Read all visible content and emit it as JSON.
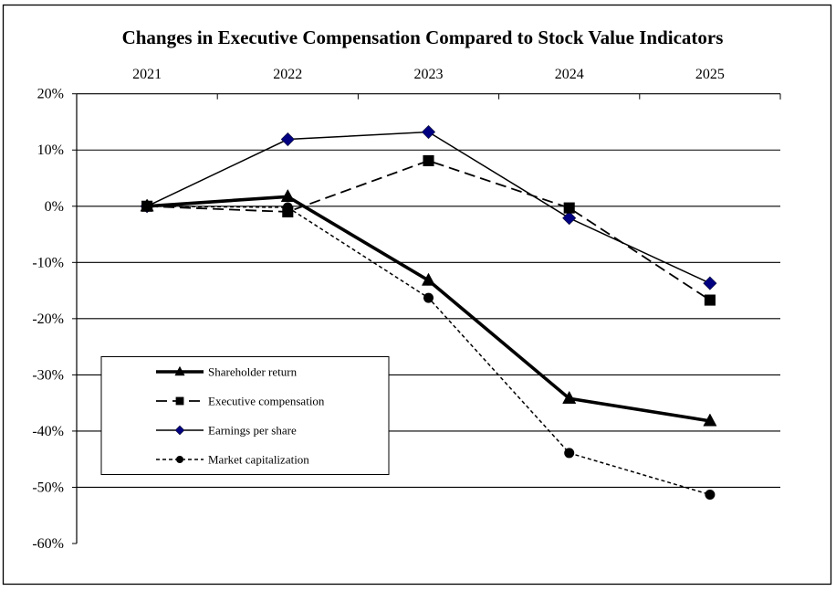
{
  "chart_data": {
    "type": "line",
    "title": "Changes in Executive Compensation Compared to Stock Value Indicators",
    "xlabel": "",
    "ylabel": "",
    "categories": [
      "2021",
      "2022",
      "2023",
      "2024",
      "2025"
    ],
    "category_axis_position": "top",
    "ylim": [
      -60,
      20
    ],
    "yticks": [
      20,
      10,
      0,
      -10,
      -20,
      -30,
      -40,
      -50,
      -60
    ],
    "ytick_labels": [
      "20%",
      "10%",
      "0%",
      "-10%",
      "-20%",
      "-30%",
      "-40%",
      "-50%",
      "-60%"
    ],
    "grid": true,
    "legend_position": "lower-left",
    "series": [
      {
        "name": "Shareholder return",
        "values": [
          0,
          1.7,
          -13.2,
          -34.2,
          -38.2
        ],
        "marker": "triangle",
        "line_style": "solid-thick",
        "color": "#000000"
      },
      {
        "name": "Executive compensation",
        "values": [
          0,
          -1.0,
          8.1,
          -0.3,
          -16.7
        ],
        "marker": "square",
        "line_style": "long-dash",
        "color": "#000000"
      },
      {
        "name": "Earnings per share",
        "values": [
          0,
          11.9,
          13.2,
          -2.1,
          -13.7
        ],
        "marker": "diamond",
        "line_style": "solid",
        "color": "#000000",
        "marker_color": "#000080"
      },
      {
        "name": "Market capitalization",
        "values": [
          0,
          -0.2,
          -16.3,
          -43.9,
          -51.3
        ],
        "marker": "circle",
        "line_style": "short-dash",
        "color": "#000000"
      }
    ]
  }
}
